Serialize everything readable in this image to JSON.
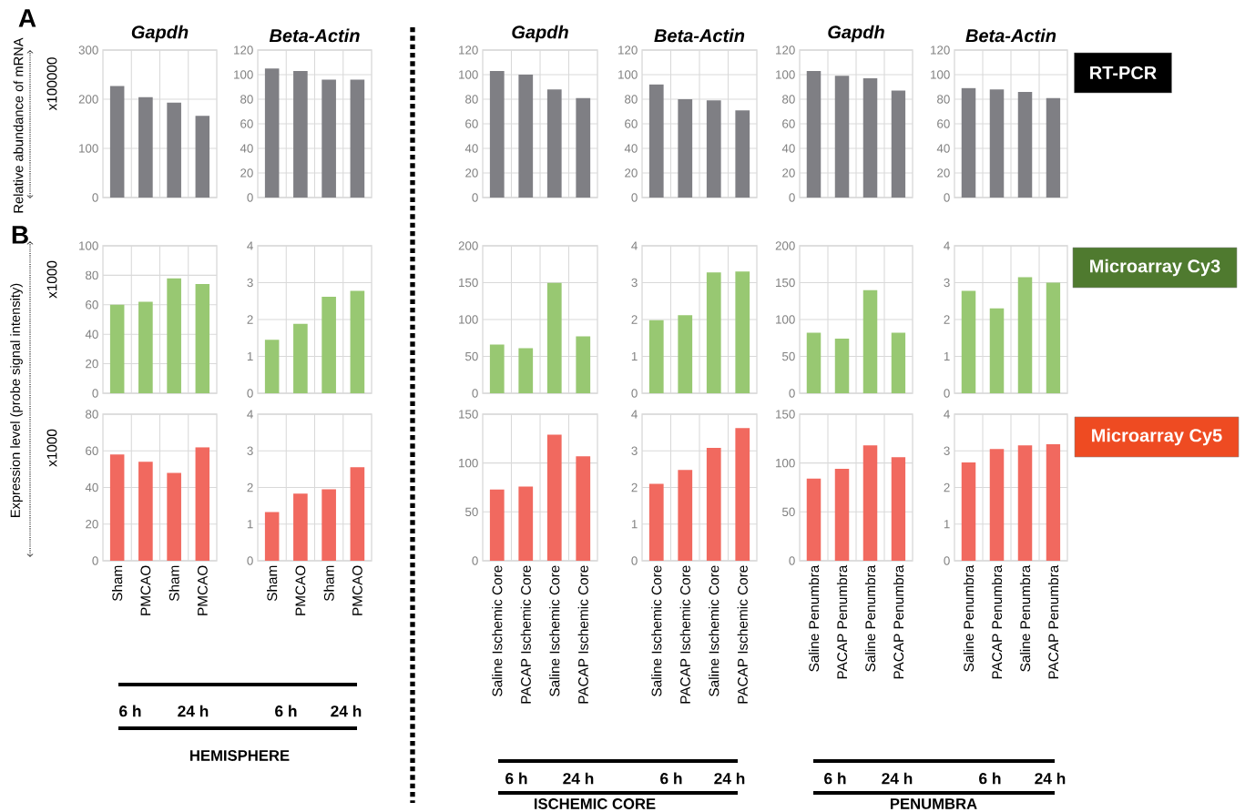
{
  "chart_data": [
    {
      "type": "bar",
      "title": "Gapdh",
      "ylabel": "x100000",
      "annotations": [
        "A",
        "Relative abundance of mRNA"
      ],
      "categories": [
        null,
        null,
        null,
        null
      ],
      "values": [
        227,
        204,
        193,
        166
      ],
      "color": "#7f7f84",
      "ylim": [
        0,
        300
      ],
      "yticks": [
        0,
        100,
        200,
        300
      ],
      "grid": true,
      "tick_labels": "y"
    },
    {
      "type": "bar",
      "title": "Beta-Actin",
      "categories": [
        null,
        null,
        null,
        null
      ],
      "values": [
        105,
        103,
        96,
        96
      ],
      "color": "#7f7f84",
      "ylim": [
        0,
        120
      ],
      "yticks": [
        0,
        20,
        40,
        60,
        80,
        100,
        120
      ],
      "grid": true,
      "tick_labels": "y"
    },
    {
      "type": "bar",
      "title": "Gapdh",
      "categories": [
        null,
        null,
        null,
        null
      ],
      "values": [
        103,
        100,
        88,
        81
      ],
      "color": "#7f7f84",
      "ylim": [
        0,
        120
      ],
      "yticks": [
        0,
        20,
        40,
        60,
        80,
        100,
        120
      ],
      "grid": true,
      "tick_labels": "y"
    },
    {
      "type": "bar",
      "title": "Beta-Actin",
      "categories": [
        null,
        null,
        null,
        null
      ],
      "values": [
        92,
        80,
        79,
        71
      ],
      "color": "#7f7f84",
      "ylim": [
        0,
        120
      ],
      "yticks": [
        0,
        20,
        40,
        60,
        80,
        100,
        120
      ],
      "grid": true,
      "tick_labels": "y"
    },
    {
      "type": "bar",
      "title": "Gapdh",
      "categories": [
        null,
        null,
        null,
        null
      ],
      "values": [
        103,
        99,
        97,
        87
      ],
      "color": "#7f7f84",
      "ylim": [
        0,
        120
      ],
      "yticks": [
        0,
        20,
        40,
        60,
        80,
        100,
        120
      ],
      "grid": true,
      "tick_labels": "y"
    },
    {
      "type": "bar",
      "title": "Beta-Actin",
      "annotations": [
        "RT-PCR"
      ],
      "categories": [
        null,
        null,
        null,
        null
      ],
      "values": [
        89,
        88,
        86,
        81
      ],
      "color": "#7f7f84",
      "ylim": [
        0,
        120
      ],
      "yticks": [
        0,
        20,
        40,
        60,
        80,
        100,
        120
      ],
      "grid": true,
      "tick_labels": "y"
    },
    {
      "type": "bar",
      "ylabel": "x1000",
      "annotations": [
        "B",
        "Expression level (probe signal intensity)"
      ],
      "categories": [
        null,
        null,
        null,
        null
      ],
      "values": [
        60,
        62,
        78,
        74
      ],
      "color": "#98c872",
      "ylim": [
        0,
        100
      ],
      "yticks": [
        0,
        20,
        40,
        60,
        80,
        100
      ],
      "grid": true,
      "tick_labels": "y"
    },
    {
      "type": "bar",
      "categories": [
        null,
        null,
        null,
        null
      ],
      "values": [
        1.45,
        1.88,
        2.62,
        2.78
      ],
      "color": "#98c872",
      "ylim": [
        0,
        4
      ],
      "yticks": [
        0,
        1,
        2,
        3,
        4
      ],
      "grid": true,
      "tick_labels": "y"
    },
    {
      "type": "bar",
      "categories": [
        null,
        null,
        null,
        null
      ],
      "values": [
        66,
        61,
        150,
        77
      ],
      "color": "#98c872",
      "ylim": [
        0,
        200
      ],
      "yticks": [
        0,
        50,
        100,
        150,
        200
      ],
      "grid": true,
      "tick_labels": "y"
    },
    {
      "type": "bar",
      "categories": [
        null,
        null,
        null,
        null
      ],
      "values": [
        1.98,
        2.12,
        3.28,
        3.3
      ],
      "color": "#98c872",
      "ylim": [
        0,
        4
      ],
      "yticks": [
        0,
        1,
        2,
        3,
        4
      ],
      "grid": true,
      "tick_labels": "y"
    },
    {
      "type": "bar",
      "categories": [
        null,
        null,
        null,
        null
      ],
      "values": [
        82,
        74,
        140,
        82
      ],
      "color": "#98c872",
      "ylim": [
        0,
        200
      ],
      "yticks": [
        0,
        50,
        100,
        150,
        200
      ],
      "grid": true,
      "tick_labels": "y"
    },
    {
      "type": "bar",
      "annotations": [
        "Microarray Cy3"
      ],
      "categories": [
        null,
        null,
        null,
        null
      ],
      "values": [
        2.78,
        2.3,
        3.15,
        3.0
      ],
      "color": "#98c872",
      "ylim": [
        0,
        4
      ],
      "yticks": [
        0,
        1,
        2,
        3,
        4
      ],
      "grid": true,
      "tick_labels": "y"
    },
    {
      "type": "bar",
      "ylabel": "x1000",
      "annotations": [
        "6 h",
        "24 h",
        "HEMISPHERE"
      ],
      "categories": [
        "Sham",
        "PMCAO",
        "Sham",
        "PMCAO"
      ],
      "values": [
        58,
        54,
        48,
        62
      ],
      "color": "#f1695f",
      "ylim": [
        0,
        80
      ],
      "yticks": [
        0,
        20,
        40,
        60,
        80
      ],
      "grid": true
    },
    {
      "type": "bar",
      "annotations": [
        "6 h",
        "24 h"
      ],
      "categories": [
        "Sham",
        "PMCAO",
        "Sham",
        "PMCAO"
      ],
      "values": [
        1.33,
        1.83,
        1.95,
        2.55
      ],
      "color": "#f1695f",
      "ylim": [
        0,
        4
      ],
      "yticks": [
        0,
        1,
        2,
        3,
        4
      ],
      "grid": true
    },
    {
      "type": "bar",
      "annotations": [
        "6 h",
        "24 h",
        "ISCHEMIC CORE"
      ],
      "categories": [
        "Saline Ischemic Core",
        "PACAP Ischemic Core",
        "Saline Ischemic Core",
        "PACAP Ischemic Core"
      ],
      "values": [
        73,
        76,
        129,
        107
      ],
      "color": "#f1695f",
      "ylim": [
        0,
        150
      ],
      "yticks": [
        0,
        50,
        100,
        150
      ],
      "grid": true
    },
    {
      "type": "bar",
      "annotations": [
        "6 h",
        "24 h"
      ],
      "categories": [
        "Saline Ischemic Core",
        "PACAP Ischemic Core",
        "Saline Ischemic Core",
        "PACAP Ischemic Core"
      ],
      "values": [
        2.1,
        2.48,
        3.08,
        3.62
      ],
      "color": "#f1695f",
      "ylim": [
        0,
        4
      ],
      "yticks": [
        0,
        1,
        2,
        3,
        4
      ],
      "grid": true
    },
    {
      "type": "bar",
      "annotations": [
        "6 h",
        "24 h",
        "PENUMBRA"
      ],
      "categories": [
        "Saline Penumbra",
        "PACAP Penumbra",
        "Saline Penumbra",
        "PACAP Penumbra"
      ],
      "values": [
        84,
        94,
        118,
        106
      ],
      "color": "#f1695f",
      "ylim": [
        0,
        150
      ],
      "yticks": [
        0,
        50,
        100,
        150
      ],
      "grid": true
    },
    {
      "type": "bar",
      "annotations": [
        "6 h",
        "24 h",
        "Microarray Cy5"
      ],
      "categories": [
        "Saline Penumbra",
        "PACAP Penumbra",
        "Saline Penumbra",
        "PACAP Penumbra"
      ],
      "values": [
        2.68,
        3.05,
        3.15,
        3.18
      ],
      "color": "#f1695f",
      "ylim": [
        0,
        4
      ],
      "yticks": [
        0,
        1,
        2,
        3,
        4
      ],
      "grid": true
    }
  ]
}
